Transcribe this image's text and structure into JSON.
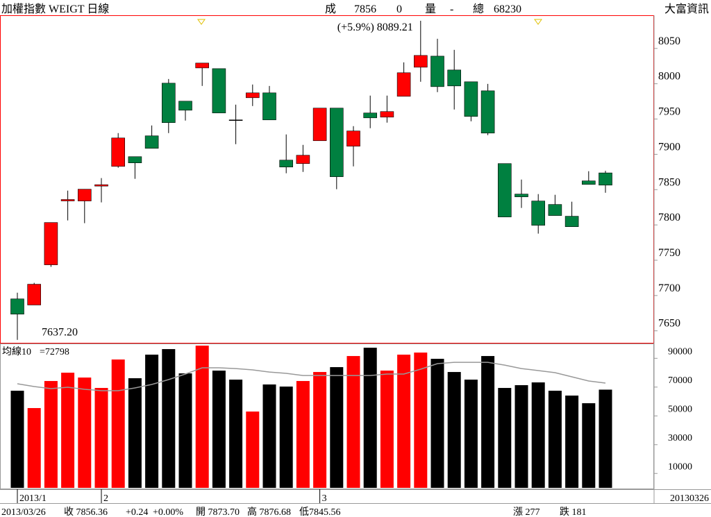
{
  "header": {
    "title": "加權指數 WEIGT 日線",
    "source": "大富資訊",
    "items": [
      {
        "text": "成",
        "color": "#000000"
      },
      {
        "text": "7856",
        "color": "#ff0000"
      },
      {
        "text": "0",
        "color": "#ff0000"
      },
      {
        "text": "量",
        "color": "#000000"
      },
      {
        "text": "-",
        "color": "#ff0000"
      },
      {
        "text": "總",
        "color": "#000000"
      },
      {
        "text": "68230",
        "color": "#ff0000"
      }
    ]
  },
  "chart_data": [
    {
      "type": "candlestick",
      "categories": [
        "2013/1",
        null,
        null,
        null,
        null,
        "2",
        null,
        null,
        null,
        null,
        null,
        null,
        null,
        null,
        null,
        null,
        null,
        null,
        "3",
        null,
        null,
        null,
        null,
        null,
        null,
        null,
        null,
        null,
        null,
        null,
        null,
        null,
        null,
        null,
        null,
        null
      ],
      "end_label": "20130326",
      "open": [
        7695.2,
        7686.6,
        7743.5,
        7834.0,
        7833.9,
        7855.0,
        7883.0,
        7896.7,
        7926.2,
        8000.8,
        7975.3,
        8022.4,
        8021.4,
        7948.8,
        7980.2,
        7987.1,
        7891.8,
        7886.9,
        7919.3,
        7965.5,
        7911.5,
        7958.6,
        7952.7,
        7982.2,
        8023.4,
        8039.1,
        8019.5,
        8002.8,
        7990.0,
        7886.9,
        7843.7,
        7833.9,
        7829.0,
        7812.3,
        7862.4,
        7873.7
      ],
      "high": [
        7704.0,
        7718.0,
        7803.4,
        7848.6,
        7850.6,
        7866.3,
        7930.1,
        7896.7,
        7940.9,
        8006.7,
        7975.3,
        8029.3,
        8021.4,
        7970.4,
        7998.9,
        7996.9,
        7928.2,
        7913.4,
        7965.5,
        7965.5,
        7939.9,
        7983.2,
        7983.2,
        8030.3,
        8089.21,
        8063.7,
        8048.0,
        8002.8,
        7999.8,
        7886.9,
        7864.3,
        7843.7,
        7842.7,
        7832.9,
        7876.1,
        7876.68
      ],
      "low": [
        7637.2,
        7686.6,
        7740.6,
        7806.4,
        7802.5,
        7831.9,
        7881.0,
        7865.3,
        7908.5,
        7930.1,
        7947.8,
        7996.9,
        7958.6,
        7914.4,
        7968.4,
        7948.8,
        7873.2,
        7875.1,
        7919.3,
        7850.6,
        7883.0,
        7937.0,
        7944.9,
        7982.2,
        8002.8,
        7988.1,
        7963.5,
        7946.8,
        7927.2,
        7811.3,
        7824.1,
        7787.7,
        7813.3,
        7797.5,
        7857.4,
        7845.56
      ],
      "close": [
        7673.6,
        7716.0,
        7803.4,
        7836.0,
        7850.6,
        7857.0,
        7923.2,
        7887.9,
        7908.5,
        7944.9,
        7962.5,
        8029.3,
        7958.6,
        7948.8,
        7987.1,
        7948.8,
        7882.0,
        7898.7,
        7965.5,
        7868.3,
        7933.1,
        7951.7,
        7960.6,
        8015.6,
        8040.1,
        7995.9,
        7996.9,
        7953.7,
        7930.1,
        7811.3,
        7839.8,
        7799.5,
        7813.3,
        7797.5,
        7857.4,
        7856.36
      ],
      "up_color": "#ff0000",
      "down_color": "#008040",
      "flat_color": "#000000",
      "ylim": [
        7633,
        8097
      ],
      "yticks": [
        7650,
        7700,
        7750,
        7800,
        7850,
        7900,
        7950,
        8000,
        8050
      ],
      "annotations": [
        {
          "text": "(+5.9%) 8089.21",
          "index": 24,
          "at": "high"
        },
        {
          "text": "7637.20",
          "index": 0,
          "at": "low"
        }
      ]
    },
    {
      "type": "bar",
      "values": [
        67480,
        55430,
        74230,
        80010,
        76640,
        69410,
        89170,
        76160,
        92540,
        96400,
        79530,
        98810,
        81460,
        75190,
        53020,
        71820,
        70370,
        74230,
        80490,
        83870,
        91580,
        97360,
        81460,
        92540,
        93990,
        89650,
        80490,
        75190,
        91580,
        69410,
        71340,
        73260,
        67480,
        64110,
        58800,
        68230
      ],
      "up_color": "#ff0000",
      "down_color": "#000000",
      "ylim": [
        0,
        99800
      ],
      "yticks": [
        10000,
        30000,
        50000,
        70000,
        90000
      ],
      "ma": {
        "name": "均線10",
        "value_label": "=72798",
        "color": "#999999",
        "values": [
          72300,
          70370,
          68930,
          69890,
          68440,
          67480,
          67480,
          69410,
          71820,
          75190,
          79050,
          83390,
          83390,
          82900,
          81940,
          80490,
          79530,
          78080,
          78080,
          78080,
          78080,
          78080,
          79050,
          79050,
          82420,
          86280,
          87240,
          87240,
          87240,
          85310,
          82900,
          81460,
          80010,
          77120,
          74230,
          72798
        ]
      }
    }
  ],
  "footer": {
    "items": [
      {
        "text": "2013/03/26",
        "color": "#ff0000"
      },
      {
        "text": "收 7856.36",
        "color": "#ff0000"
      },
      {
        "text": "+0.24",
        "color": "#ff0000"
      },
      {
        "text": "+0.00%",
        "color": "#ff0000"
      },
      {
        "text": "開 7873.70",
        "color": "#ff0000"
      },
      {
        "text": "高 7876.68",
        "color": "#ff0000"
      },
      {
        "text": "低7845.56",
        "color": "#008040"
      },
      {
        "text": "漲 277",
        "color": "#ff0000"
      },
      {
        "text": "跌 181",
        "color": "#008040"
      }
    ]
  }
}
